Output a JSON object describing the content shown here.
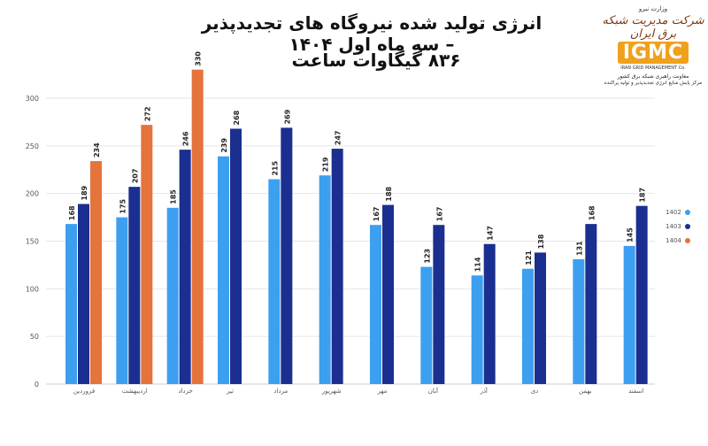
{
  "header": {
    "title": "انرژی تولید شده نیروگاه های تجدیدپذیر – سه ماه اول ۱۴۰۴",
    "subtitle": "۸۳۶ گیگاوات ساعت"
  },
  "logo": {
    "ministry": "وزارت نیرو",
    "script_name": "شرکت مدیریت شبکه برق ایران",
    "mark": "IGMC",
    "english": "IRAN GRID MANAGEMENT Co.",
    "line1": "معاونت راهبری شبکه برق کشور",
    "line2": "مرکز پایش منابع انرژی تجدیدپذیر و تولید پراکنده"
  },
  "colors": {
    "s1402": "#3d9ff0",
    "s1403": "#1a2f8f",
    "s1404": "#e4733c"
  },
  "chart_data": {
    "type": "bar",
    "categories": [
      "فروردین",
      "اردیبهشت",
      "خرداد",
      "تیر",
      "مرداد",
      "شهریور",
      "مهر",
      "آبان",
      "آذر",
      "دی",
      "بهمن",
      "اسفند"
    ],
    "series": [
      {
        "name": "1402",
        "color": "#3d9ff0",
        "values": [
          168,
          175,
          185,
          239,
          215,
          219,
          167,
          123,
          114,
          121,
          131,
          145
        ]
      },
      {
        "name": "1403",
        "color": "#1a2f8f",
        "values": [
          189,
          207,
          246,
          268,
          269,
          247,
          188,
          167,
          147,
          138,
          168,
          187
        ]
      },
      {
        "name": "1404",
        "color": "#e4733c",
        "values": [
          234,
          272,
          330,
          null,
          null,
          null,
          null,
          null,
          null,
          null,
          null,
          null
        ]
      }
    ],
    "yticks": [
      0,
      50,
      100,
      150,
      200,
      250,
      300
    ],
    "ylim": [
      0,
      330
    ],
    "grid": true,
    "legend_position": "right",
    "data_labels": true
  }
}
